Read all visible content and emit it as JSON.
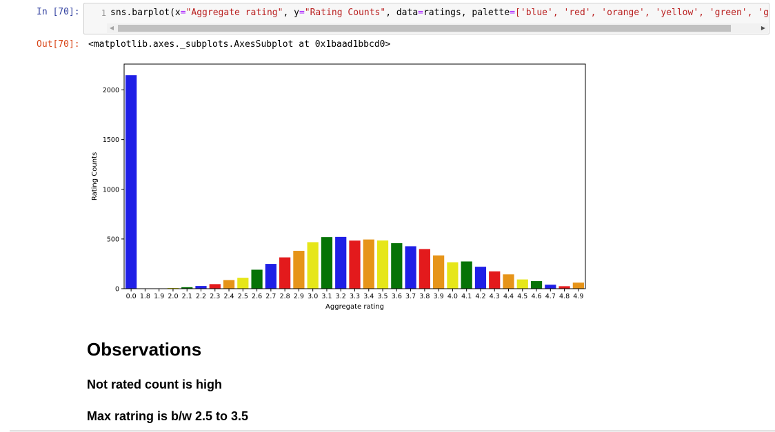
{
  "input_cell": {
    "prompt": "In [70]:",
    "line_number": "1",
    "code_parts": {
      "call": "sns.barplot(x",
      "x_value": "\"Aggregate rating\"",
      "sep1": ", y",
      "y_value": "\"Rating Counts\"",
      "data_part": ", data",
      "data_value": "ratings, palette",
      "palette_part": "['blue', 'red', 'orange', 'yellow', 'green', 'gre"
    }
  },
  "output_cell": {
    "prompt": "Out[70]:",
    "text": "<matplotlib.axes._subplots.AxesSubplot at 0x1baad1bbcd0>"
  },
  "chart_data": {
    "type": "bar",
    "xlabel": "Aggregate rating",
    "ylabel": "Rating Counts",
    "ylim": [
      0,
      2260
    ],
    "yticks": [
      0,
      500,
      1000,
      1500,
      2000
    ],
    "categories": [
      "0.0",
      "1.8",
      "1.9",
      "2.0",
      "2.1",
      "2.2",
      "2.3",
      "2.4",
      "2.5",
      "2.6",
      "2.7",
      "2.8",
      "2.9",
      "3.0",
      "3.1",
      "3.2",
      "3.3",
      "3.4",
      "3.5",
      "3.6",
      "3.7",
      "3.8",
      "3.9",
      "4.0",
      "4.1",
      "4.2",
      "4.3",
      "4.4",
      "4.5",
      "4.6",
      "4.7",
      "4.8",
      "4.9"
    ],
    "values": [
      2148,
      1,
      2,
      7,
      15,
      27,
      46,
      87,
      110,
      191,
      249,
      315,
      381,
      468,
      519,
      521,
      484,
      495,
      485,
      458,
      427,
      399,
      335,
      266,
      274,
      221,
      174,
      144,
      93,
      76,
      40,
      25,
      61
    ],
    "palette": [
      "#1f1fe6",
      "#e31a1c",
      "#e69419",
      "#e6e619",
      "#067306"
    ],
    "grid": false,
    "legend": "none"
  },
  "markdown": {
    "heading": "Observations",
    "note1": "Not rated count is high",
    "note2": "Max ratring is b/w 2.5 to 3.5"
  }
}
